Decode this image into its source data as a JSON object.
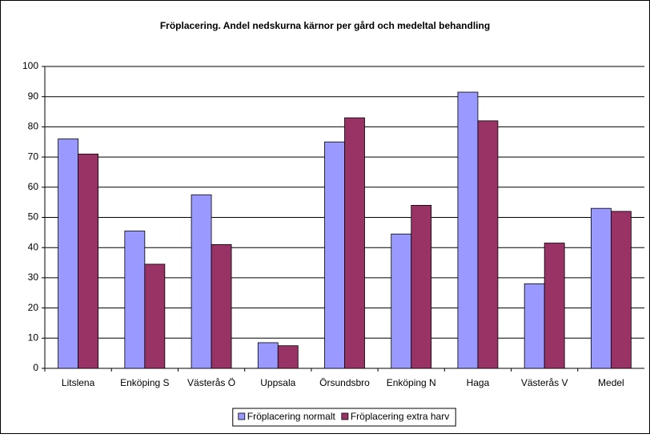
{
  "chart_data": {
    "type": "bar",
    "title": "Fröplacering. Andel nedskurna kärnor per gård och medeltal behandling",
    "categories": [
      "Litslena",
      "Enköping S",
      "Västerås Ö",
      "Uppsala",
      "Örsundsbro",
      "Enköping N",
      "Haga",
      "Västerås V",
      "Medel"
    ],
    "series": [
      {
        "name": "Fröplacering normalt",
        "color": "#9999ff",
        "values": [
          76,
          45.5,
          57.5,
          8.5,
          75,
          44.5,
          91.5,
          28,
          53
        ]
      },
      {
        "name": "Fröplacering extra harv",
        "color": "#993366",
        "values": [
          71,
          34.5,
          41,
          7.5,
          83,
          54,
          82,
          41.5,
          52
        ]
      }
    ],
    "ylim": [
      0,
      100
    ],
    "yticks": [
      0,
      10,
      20,
      30,
      40,
      50,
      60,
      70,
      80,
      90,
      100
    ],
    "grid": true
  }
}
